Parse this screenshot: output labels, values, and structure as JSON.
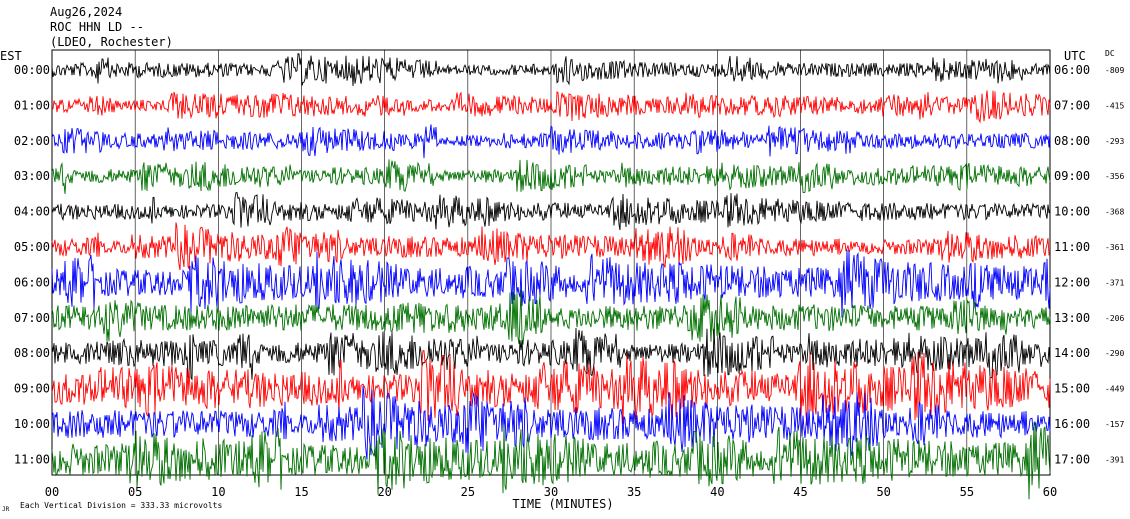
{
  "header": {
    "date": "Aug26,2024",
    "station": "ROC HHN LD --",
    "network": "(LDEO, Rochester)"
  },
  "labels": {
    "left_zone": "EST",
    "right_zone": "UTC",
    "dc": "DC",
    "xlabel": "TIME (MINUTES)",
    "footer": "Each Vertical Division = 333.33 microvolts",
    "footer_mark": "JR"
  },
  "chart_data": {
    "type": "line",
    "xlabel": "TIME (MINUTES)",
    "xlim": [
      0,
      60
    ],
    "xticks": [
      "00",
      "05",
      "10",
      "15",
      "20",
      "25",
      "30",
      "35",
      "40",
      "45",
      "50",
      "55",
      "60"
    ],
    "rows": [
      {
        "est": "00:00",
        "utc": "06:00",
        "dc": "-809",
        "color": "#000000",
        "amp": 7
      },
      {
        "est": "01:00",
        "utc": "07:00",
        "dc": "-415",
        "color": "#ff0000",
        "amp": 7
      },
      {
        "est": "02:00",
        "utc": "08:00",
        "dc": "-293",
        "color": "#0000ff",
        "amp": 7
      },
      {
        "est": "03:00",
        "utc": "09:00",
        "dc": "-356",
        "color": "#007000",
        "amp": 8
      },
      {
        "est": "04:00",
        "utc": "10:00",
        "dc": "-368",
        "color": "#000000",
        "amp": 8
      },
      {
        "est": "05:00",
        "utc": "11:00",
        "dc": "-361",
        "color": "#ff0000",
        "amp": 9
      },
      {
        "est": "06:00",
        "utc": "12:00",
        "dc": "-371",
        "color": "#0000ff",
        "amp": 14
      },
      {
        "est": "07:00",
        "utc": "13:00",
        "dc": "-206",
        "color": "#007000",
        "amp": 14
      },
      {
        "est": "08:00",
        "utc": "14:00",
        "dc": "-290",
        "color": "#000000",
        "amp": 12
      },
      {
        "est": "09:00",
        "utc": "15:00",
        "dc": "-449",
        "color": "#ff0000",
        "amp": 16
      },
      {
        "est": "10:00",
        "utc": "16:00",
        "dc": "-157",
        "color": "#0000ff",
        "amp": 14
      },
      {
        "est": "11:00",
        "utc": "17:00",
        "dc": "-391",
        "color": "#007000",
        "amp": 16
      }
    ]
  }
}
